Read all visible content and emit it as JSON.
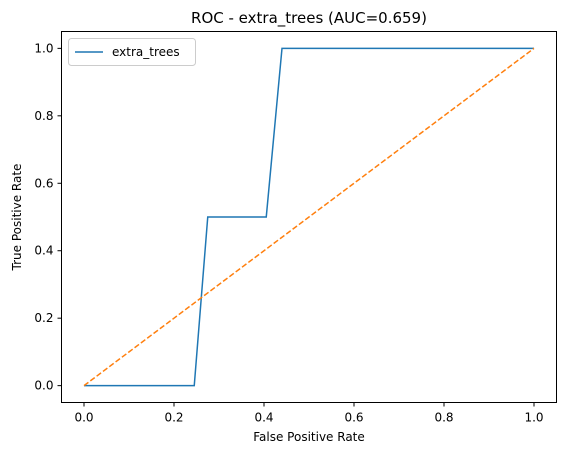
{
  "chart_data": {
    "type": "line",
    "title": "ROC - extra_trees (AUC=0.659)",
    "xlabel": "False Positive Rate",
    "ylabel": "True Positive Rate",
    "xlim": [
      -0.05,
      1.05
    ],
    "ylim": [
      -0.05,
      1.05
    ],
    "xticks": [
      "0.0",
      "0.2",
      "0.4",
      "0.6",
      "0.8",
      "1.0"
    ],
    "yticks": [
      "0.0",
      "0.2",
      "0.4",
      "0.6",
      "0.8",
      "1.0"
    ],
    "grid": false,
    "legend_position": "top-left",
    "series": [
      {
        "name": "extra_trees",
        "color": "#1f77b4",
        "style": "solid",
        "x": [
          0.0,
          0.245,
          0.275,
          0.405,
          0.44,
          1.0
        ],
        "y": [
          0.0,
          0.0,
          0.5,
          0.5,
          1.0,
          1.0
        ]
      },
      {
        "color": "#ff7f0e",
        "style": "dashed",
        "x": [
          0.0,
          1.0
        ],
        "y": [
          0.0,
          1.0
        ]
      }
    ]
  }
}
